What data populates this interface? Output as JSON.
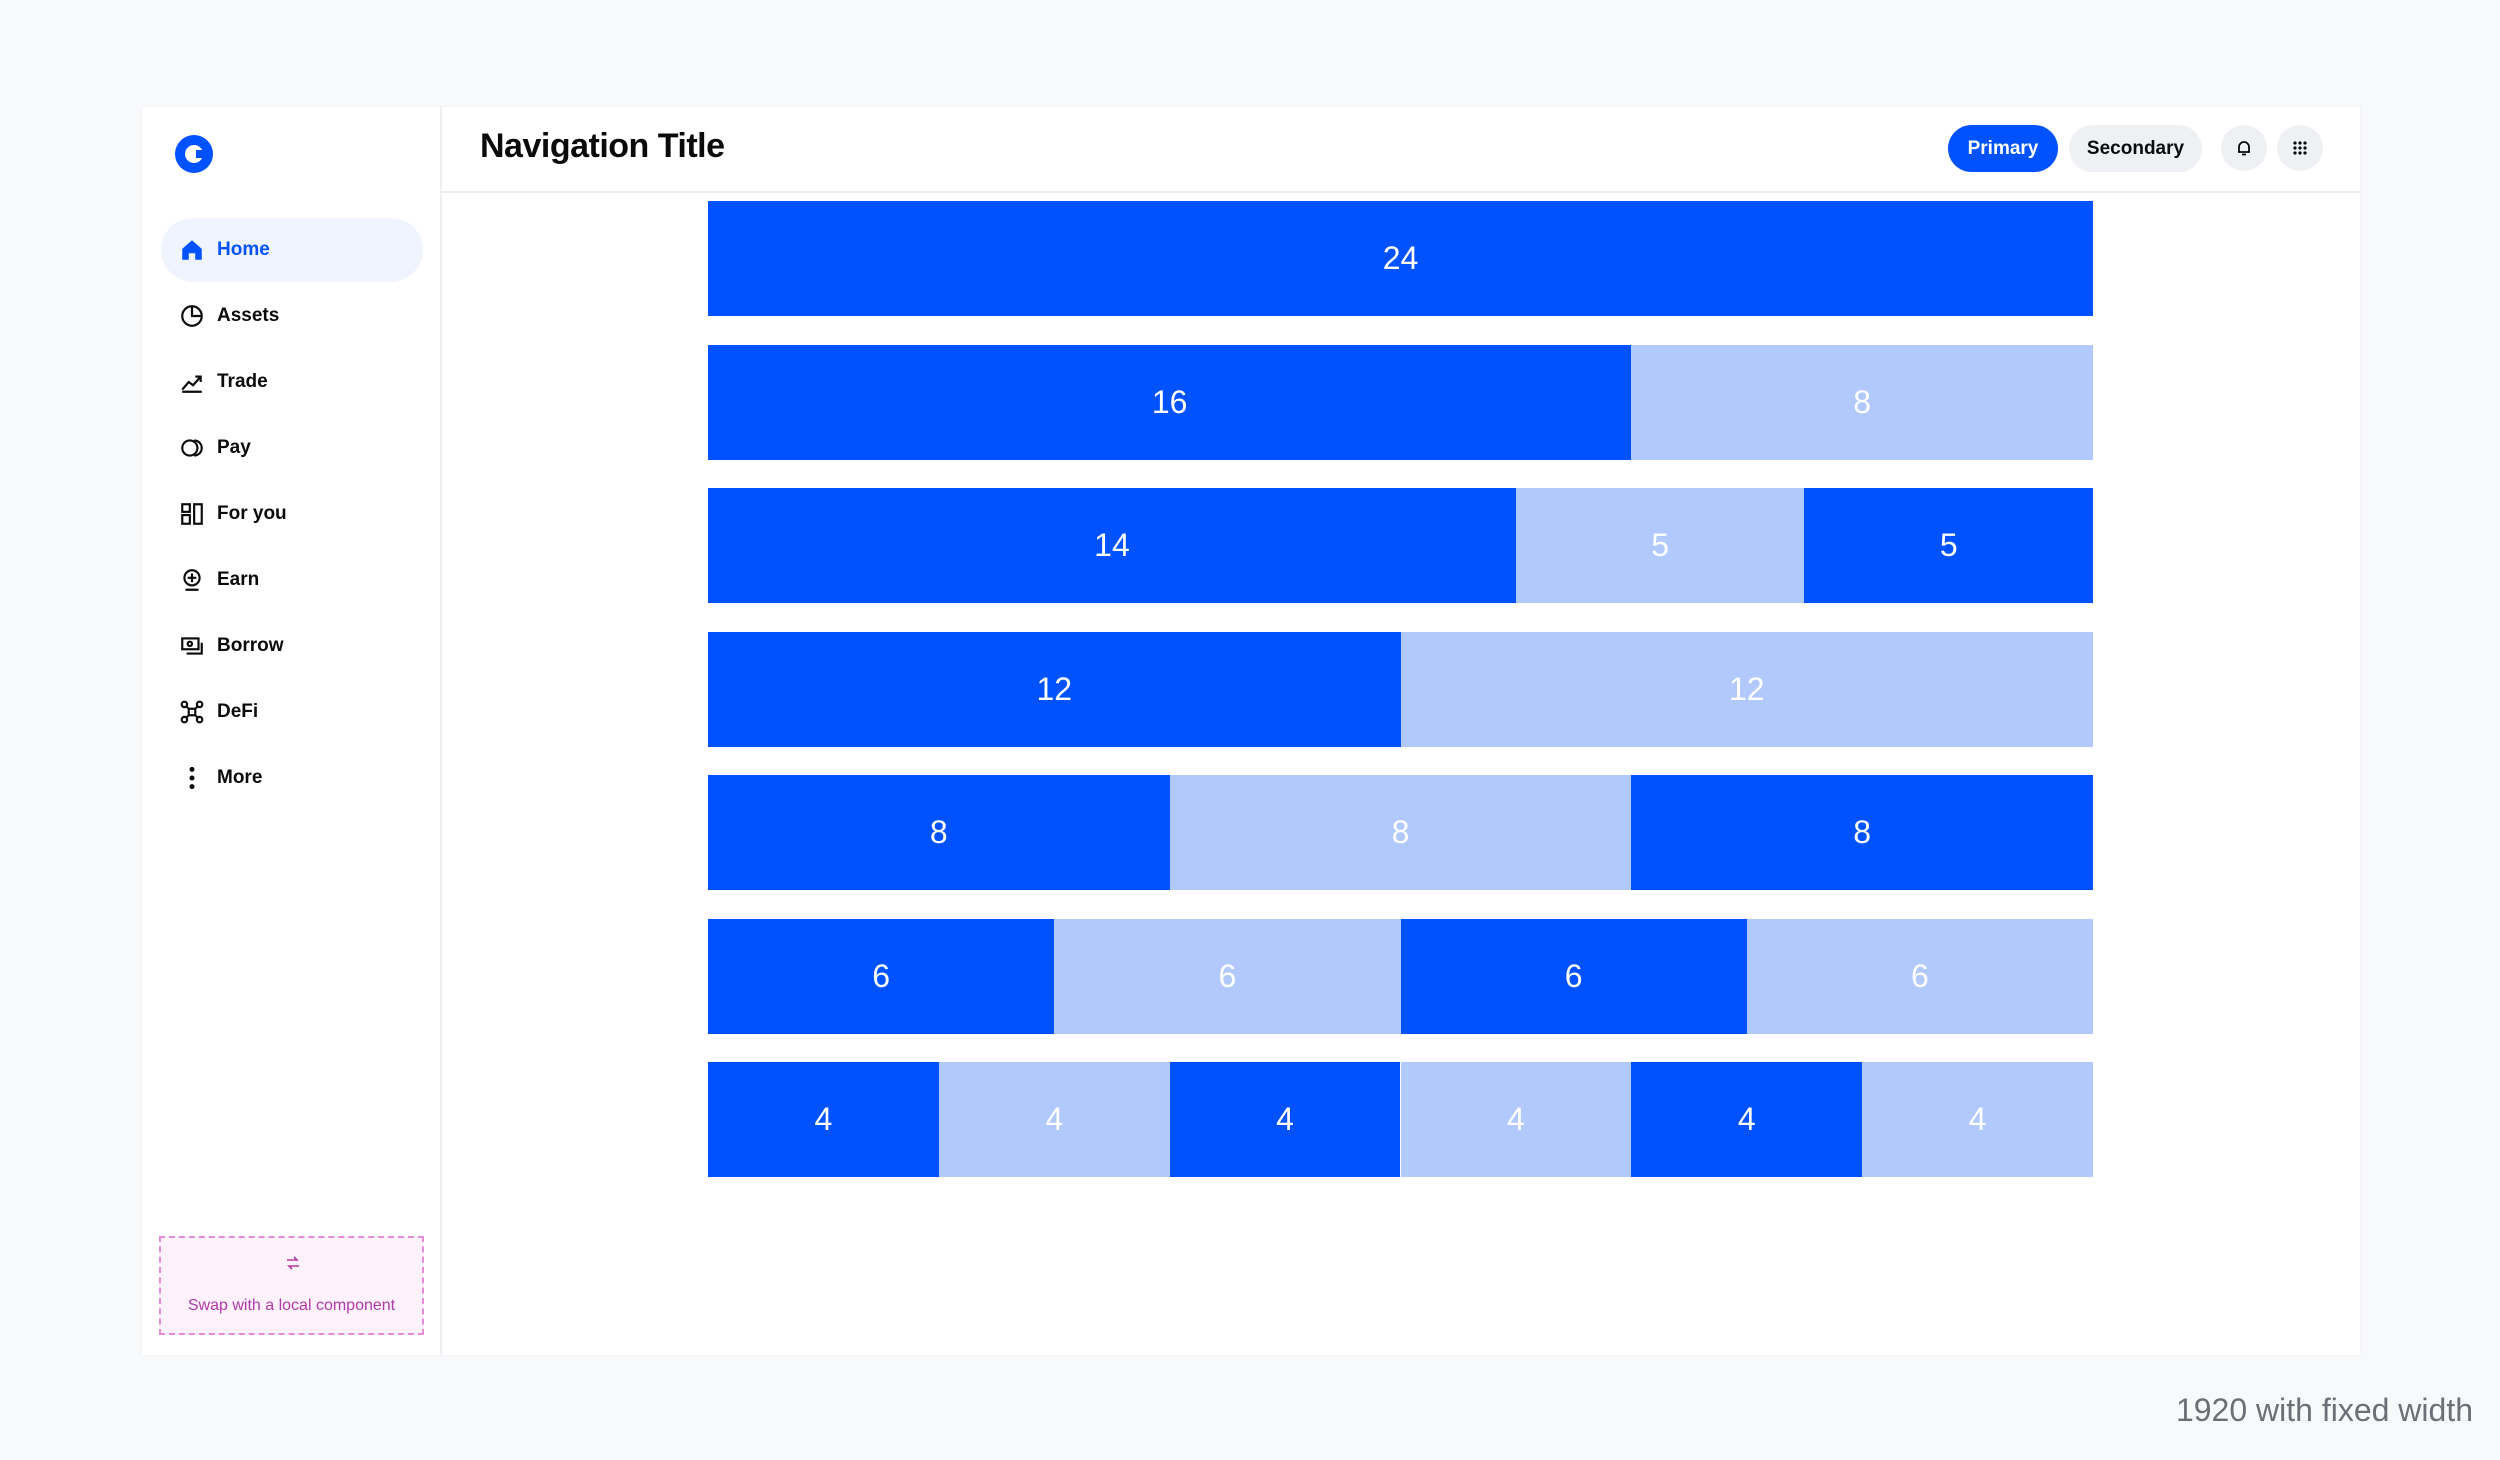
{
  "sidebar": {
    "nav": [
      "Home",
      "Assets",
      "Trade",
      "Pay",
      "For you",
      "Earn",
      "Borrow",
      "DeFi",
      "More"
    ],
    "placeholder": "Swap with a local component"
  },
  "header": {
    "title": "Navigation Title",
    "buttons": [
      "Primary",
      "Secondary"
    ]
  },
  "grid": {
    "rows": [
      [
        24
      ],
      [
        16,
        8
      ],
      [
        14,
        5,
        5
      ],
      [
        12,
        12
      ],
      [
        8,
        8,
        8
      ],
      [
        6,
        6,
        6,
        6
      ],
      [
        4,
        4,
        4,
        4,
        4,
        4
      ]
    ]
  },
  "footer": "1920 with fixed width"
}
